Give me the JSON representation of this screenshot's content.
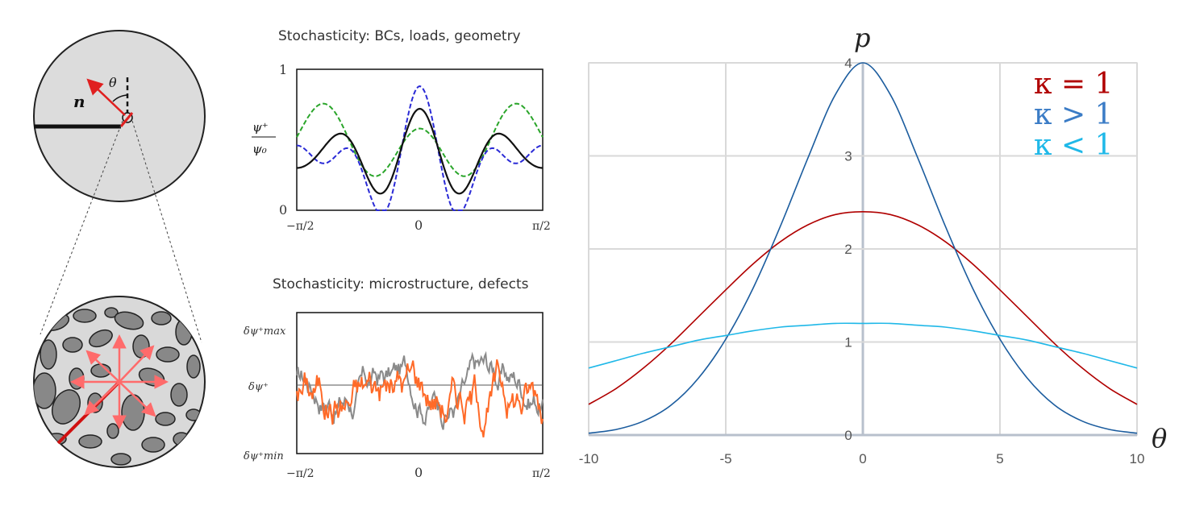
{
  "left_diagram": {
    "normal_label": "n",
    "angle_label": "θ"
  },
  "top_plot": {
    "title": "Stochasticity: BCs, loads, geometry",
    "ylabel_num": "ψ⁺",
    "ylabel_den": "ψ₀",
    "yticks": [
      "1",
      "0"
    ],
    "xticks": [
      "−π/2",
      "0",
      "π/2"
    ],
    "colors": {
      "black": "#111111",
      "blue": "#2a2ad6",
      "green": "#2aa52a"
    }
  },
  "bottom_plot": {
    "title": "Stochasticity: microstructure, defects",
    "yticks": [
      "δψ⁺max",
      "δψ⁺",
      "δψ⁺min"
    ],
    "xticks": [
      "−π/2",
      "0",
      "π/2"
    ],
    "colors": {
      "orange": "#ff6a28",
      "gray": "#8a8a8a"
    }
  },
  "chart_data": {
    "type": "line",
    "xlabel": "θ",
    "ylabel": "p",
    "xlim": [
      -10,
      10
    ],
    "ylim": [
      0,
      4
    ],
    "xticks": [
      "-10",
      "-5",
      "0",
      "5",
      "10"
    ],
    "yticks": [
      "0",
      "1",
      "2",
      "3",
      "4"
    ],
    "grid": true,
    "legend_position": "top-right",
    "series": [
      {
        "name": "κ = 1",
        "color": "#b00000",
        "x": [
          -10,
          -9,
          -8,
          -7,
          -6,
          -5,
          -4,
          -3,
          -2,
          -1,
          0,
          1,
          2,
          3,
          4,
          5,
          6,
          7,
          8,
          9,
          10
        ],
        "y": [
          0.33,
          0.5,
          0.72,
          0.98,
          1.27,
          1.56,
          1.84,
          2.08,
          2.26,
          2.37,
          2.4,
          2.37,
          2.26,
          2.08,
          1.84,
          1.56,
          1.27,
          0.98,
          0.72,
          0.5,
          0.33
        ]
      },
      {
        "name": "κ > 1",
        "color": "#1b5c9e",
        "x": [
          -10,
          -9,
          -8,
          -7,
          -6,
          -5,
          -4,
          -3,
          -2,
          -1,
          0,
          1,
          2,
          3,
          4,
          5,
          6,
          7,
          8,
          9,
          10
        ],
        "y": [
          0.02,
          0.06,
          0.15,
          0.32,
          0.61,
          1.03,
          1.58,
          2.25,
          2.98,
          3.66,
          4.0,
          3.66,
          2.98,
          2.25,
          1.58,
          1.03,
          0.61,
          0.32,
          0.15,
          0.06,
          0.02
        ]
      },
      {
        "name": "κ < 1",
        "color": "#1fb8e8",
        "x": [
          -10,
          -9,
          -8,
          -7,
          -6,
          -5,
          -4,
          -3,
          -2,
          -1,
          0,
          1,
          2,
          3,
          4,
          5,
          6,
          7,
          8,
          9,
          10
        ],
        "y": [
          0.72,
          0.8,
          0.88,
          0.95,
          1.02,
          1.07,
          1.12,
          1.16,
          1.18,
          1.2,
          1.2,
          1.2,
          1.18,
          1.16,
          1.12,
          1.07,
          1.02,
          0.95,
          0.88,
          0.8,
          0.72
        ]
      }
    ]
  }
}
